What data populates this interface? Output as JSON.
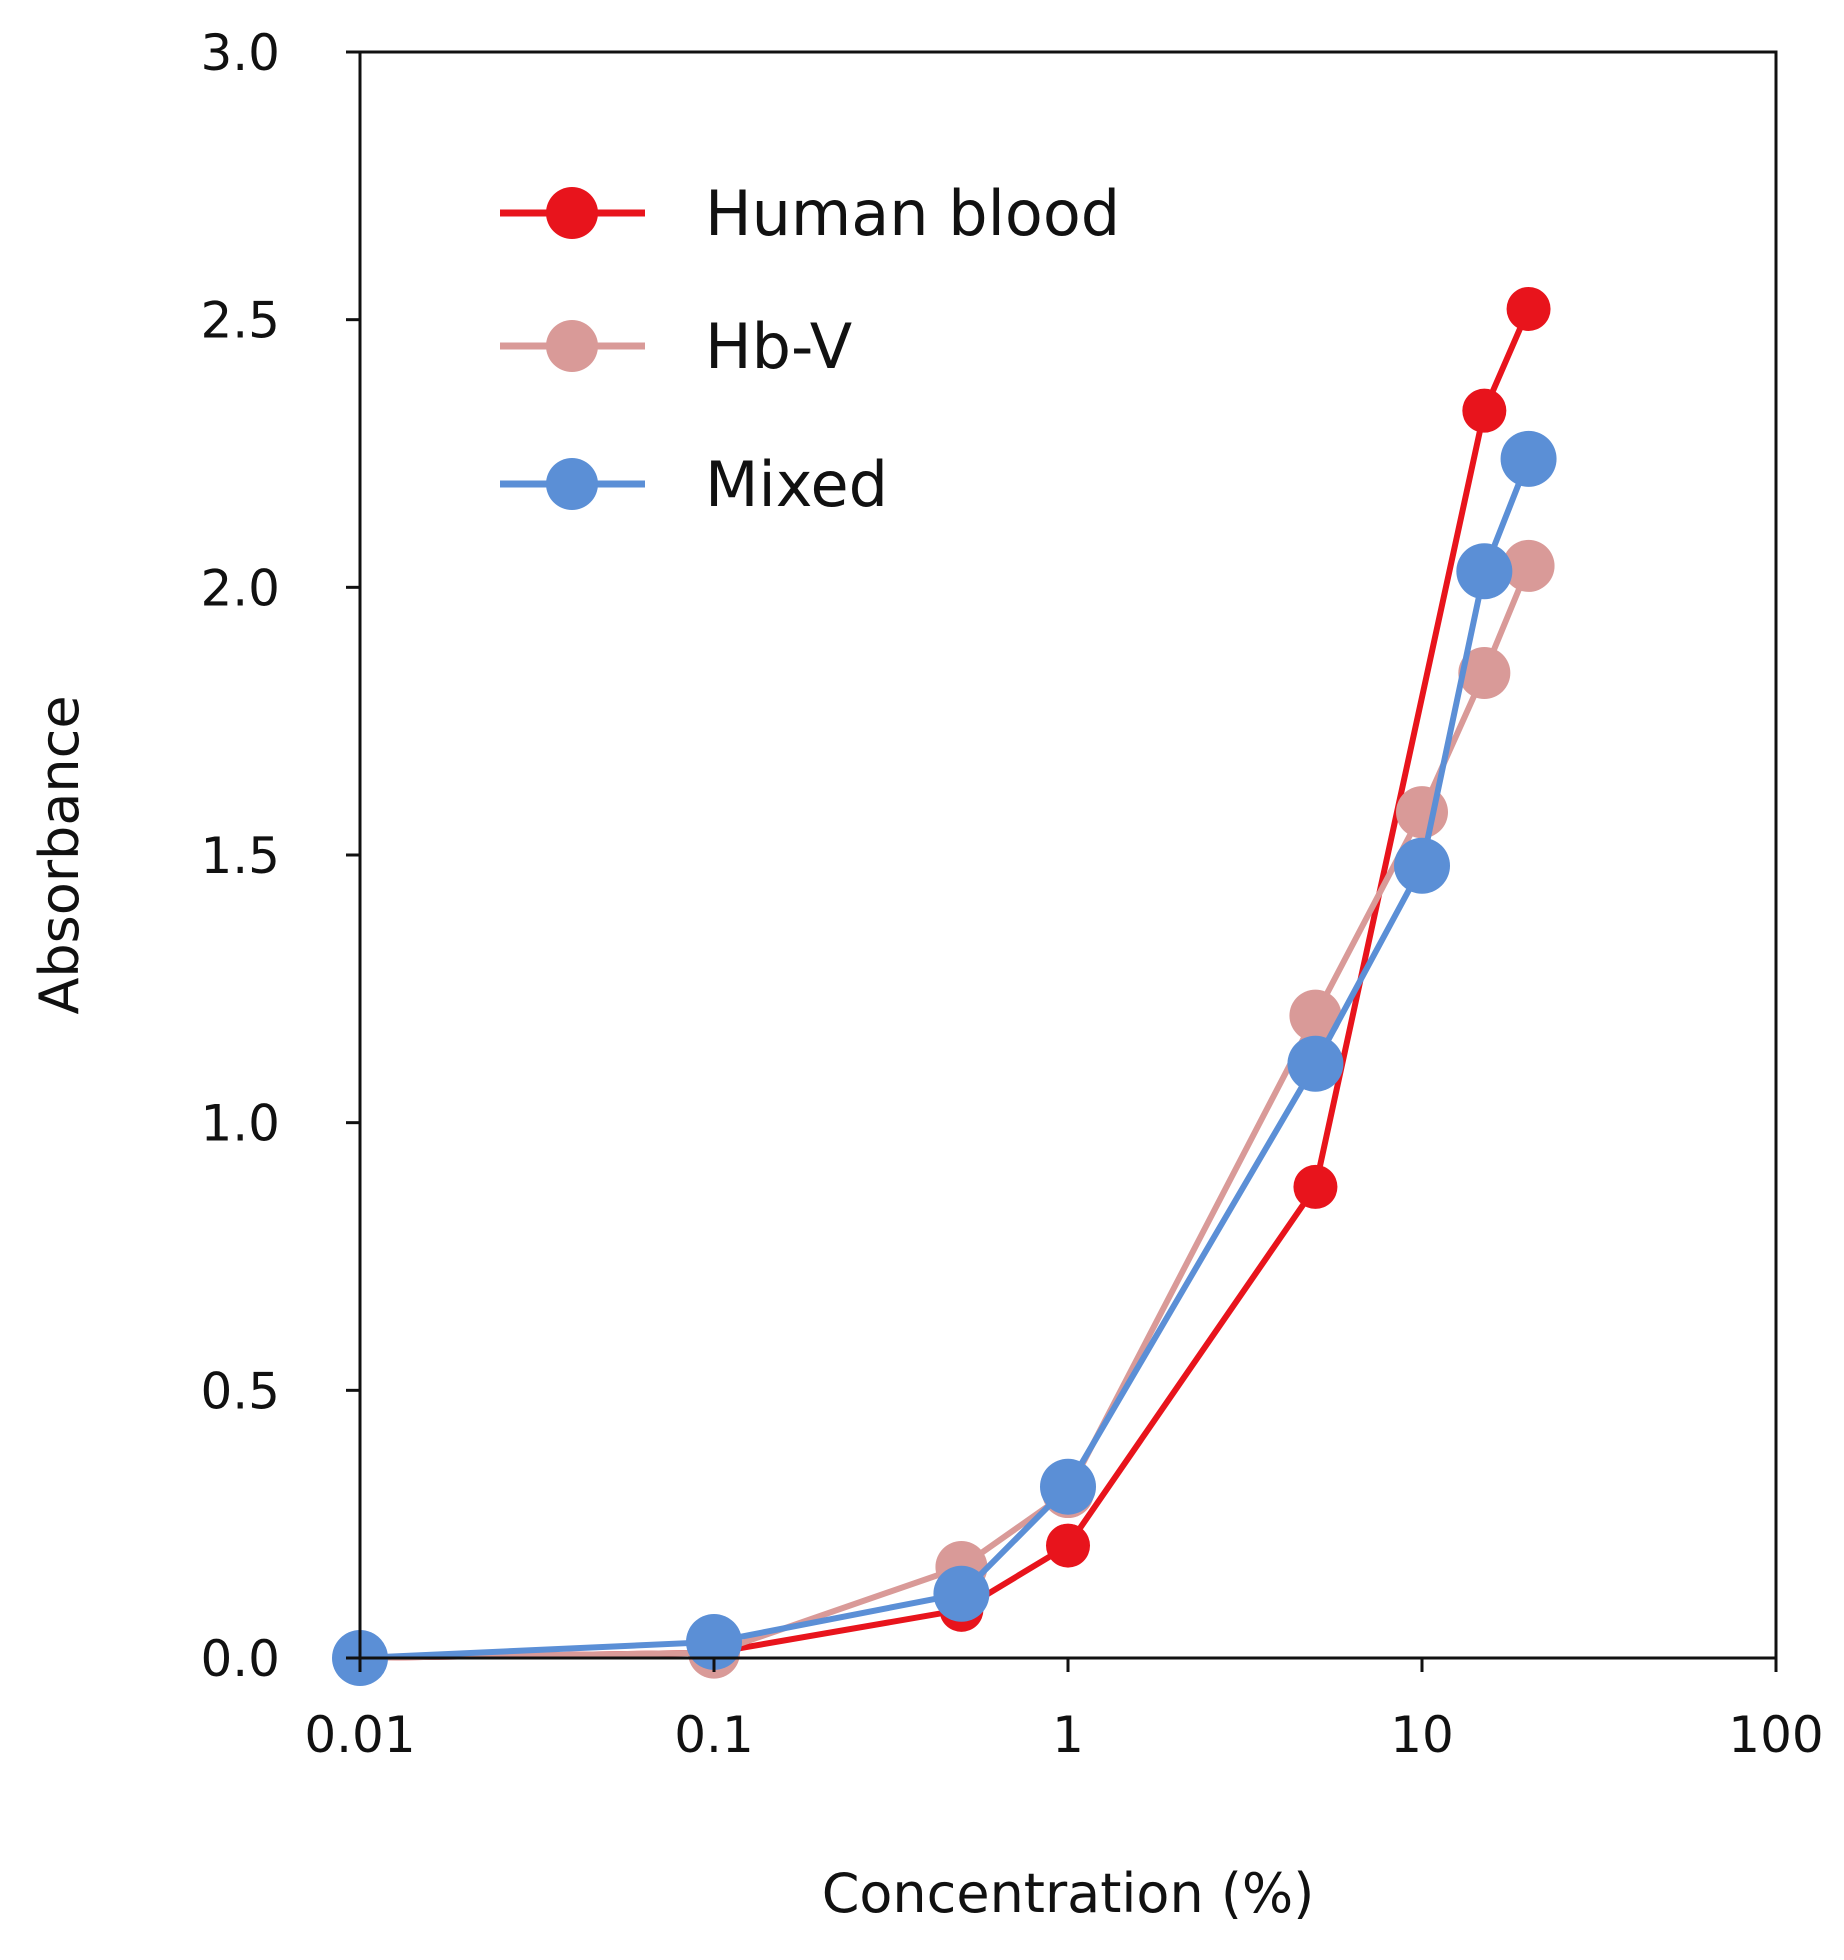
{
  "chart_data": {
    "type": "line",
    "title": "",
    "xlabel": "Concentration (%)",
    "ylabel": "Absorbance",
    "xscale": "log",
    "xlim": [
      0.01,
      100
    ],
    "ylim": [
      0,
      3
    ],
    "xticks": [
      {
        "value": 0.01,
        "label": "0.01"
      },
      {
        "value": 0.1,
        "label": "0.1"
      },
      {
        "value": 1,
        "label": "1"
      },
      {
        "value": 10,
        "label": "10"
      },
      {
        "value": 100,
        "label": "100"
      }
    ],
    "yticks": [
      {
        "value": 0,
        "label": "0.0"
      },
      {
        "value": 0.5,
        "label": "0.5"
      },
      {
        "value": 1,
        "label": "1.0"
      },
      {
        "value": 1.5,
        "label": "1.5"
      },
      {
        "value": 2,
        "label": "2.0"
      },
      {
        "value": 2.5,
        "label": "2.5"
      },
      {
        "value": 3,
        "label": "3.0"
      }
    ],
    "grid": false,
    "legend_position": "top-left",
    "series": [
      {
        "name": "Human blood",
        "color": "#e8141c",
        "x": [
          0.01,
          0.1,
          0.5,
          1,
          5,
          15,
          20
        ],
        "y": [
          0.0,
          0.01,
          0.09,
          0.21,
          0.88,
          2.33,
          2.52
        ]
      },
      {
        "name": "Hb-V",
        "color": "#d99a98",
        "x": [
          0.01,
          0.1,
          0.5,
          1,
          5,
          10,
          15,
          20
        ],
        "y": [
          0.0,
          0.01,
          0.17,
          0.31,
          1.2,
          1.58,
          1.84,
          2.04
        ]
      },
      {
        "name": "Mixed",
        "color": "#5b8fd6",
        "x": [
          0.01,
          0.1,
          0.5,
          1,
          5,
          10,
          15,
          20
        ],
        "y": [
          0.0,
          0.03,
          0.12,
          0.32,
          1.11,
          1.48,
          2.03,
          2.24
        ]
      }
    ]
  }
}
